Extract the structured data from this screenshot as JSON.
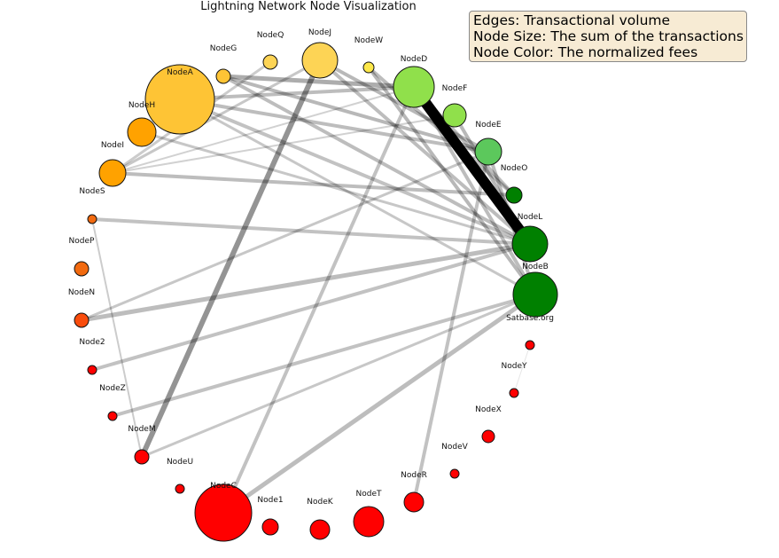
{
  "title": "Lightning Network Node Visualization",
  "legend": {
    "edges": "Edges: Transactional volume",
    "size": "Node Size: The sum of the transactions",
    "color": "Node Color: The normalized fees"
  },
  "colors": {
    "yellow": "#fde25a",
    "gold": "#fec435",
    "orange": "#ffa200",
    "dark_orange": "#f26a0f",
    "red_orange": "#f94c0c",
    "red": "#ff0000",
    "lime": "#90e04b",
    "light_green": "#5cc85c",
    "green": "#008000"
  },
  "nodes": [
    {
      "id": "NodeA",
      "color": "#fec435"
    },
    {
      "id": "NodeG",
      "color": "#fec435"
    },
    {
      "id": "NodeQ",
      "color": "#fdd455"
    },
    {
      "id": "NodeJ",
      "color": "#fdd455"
    },
    {
      "id": "NodeW",
      "color": "#fde84a"
    },
    {
      "id": "NodeD",
      "color": "#90e04b"
    },
    {
      "id": "NodeF",
      "color": "#90e04b"
    },
    {
      "id": "NodeE",
      "color": "#5cc85c"
    },
    {
      "id": "NodeO",
      "color": "#008000"
    },
    {
      "id": "NodeL",
      "color": "#008000"
    },
    {
      "id": "NodeB",
      "color": "#008000"
    },
    {
      "id": "Satbase.org",
      "color": "#ff0000"
    },
    {
      "id": "NodeY",
      "color": "#ff0000"
    },
    {
      "id": "NodeX",
      "color": "#ff0000"
    },
    {
      "id": "NodeV",
      "color": "#ff0000"
    },
    {
      "id": "NodeR",
      "color": "#ff0000"
    },
    {
      "id": "NodeT",
      "color": "#ff0000"
    },
    {
      "id": "NodeK",
      "color": "#ff0000"
    },
    {
      "id": "Node1",
      "color": "#ff0000"
    },
    {
      "id": "NodeC",
      "color": "#ff0000"
    },
    {
      "id": "NodeU",
      "color": "#ff0000"
    },
    {
      "id": "NodeM",
      "color": "#ff0000"
    },
    {
      "id": "NodeZ",
      "color": "#ff0000"
    },
    {
      "id": "Node2",
      "color": "#ff0000"
    },
    {
      "id": "NodeN",
      "color": "#f94c0c"
    },
    {
      "id": "NodeP",
      "color": "#f26a0f"
    },
    {
      "id": "NodeS",
      "color": "#f26a0f"
    },
    {
      "id": "NodeI",
      "color": "#ffa200"
    },
    {
      "id": "NodeH",
      "color": "#ffa200"
    }
  ],
  "edges": [
    {
      "source": "NodeD",
      "target": "NodeL"
    },
    {
      "source": "NodeJ",
      "target": "NodeM"
    },
    {
      "source": "NodeC",
      "target": "NodeB"
    },
    {
      "source": "NodeC",
      "target": "NodeD"
    },
    {
      "source": "NodeR",
      "target": "NodeE"
    },
    {
      "source": "NodeA",
      "target": "NodeE"
    },
    {
      "source": "NodeA",
      "target": "NodeD"
    },
    {
      "source": "NodeA",
      "target": "NodeL"
    },
    {
      "source": "NodeA",
      "target": "NodeB"
    },
    {
      "source": "NodeG",
      "target": "NodeD"
    },
    {
      "source": "NodeG",
      "target": "NodeE"
    },
    {
      "source": "NodeG",
      "target": "NodeL"
    },
    {
      "source": "NodeJ",
      "target": "NodeE"
    },
    {
      "source": "NodeJ",
      "target": "NodeL"
    },
    {
      "source": "NodeJ",
      "target": "NodeI"
    },
    {
      "source": "NodeQ",
      "target": "NodeI"
    },
    {
      "source": "NodeW",
      "target": "NodeB"
    },
    {
      "source": "NodeW",
      "target": "NodeO"
    },
    {
      "source": "NodeI",
      "target": "NodeO"
    },
    {
      "source": "NodeI",
      "target": "NodeD"
    },
    {
      "source": "NodeI",
      "target": "NodeF"
    },
    {
      "source": "NodeH",
      "target": "NodeL"
    },
    {
      "source": "NodeS",
      "target": "NodeL"
    },
    {
      "source": "NodeS",
      "target": "NodeM"
    },
    {
      "source": "NodeN",
      "target": "NodeL"
    },
    {
      "source": "NodeN",
      "target": "NodeE"
    },
    {
      "source": "Node2",
      "target": "NodeL"
    },
    {
      "source": "NodeZ",
      "target": "NodeB"
    },
    {
      "source": "NodeM",
      "target": "NodeB"
    },
    {
      "source": "NodeD",
      "target": "NodeO"
    },
    {
      "source": "NodeD",
      "target": "NodeB"
    },
    {
      "source": "NodeE",
      "target": "NodeB"
    },
    {
      "source": "NodeF",
      "target": "NodeL"
    },
    {
      "source": "Satbase.org",
      "target": "NodeY"
    }
  ]
}
